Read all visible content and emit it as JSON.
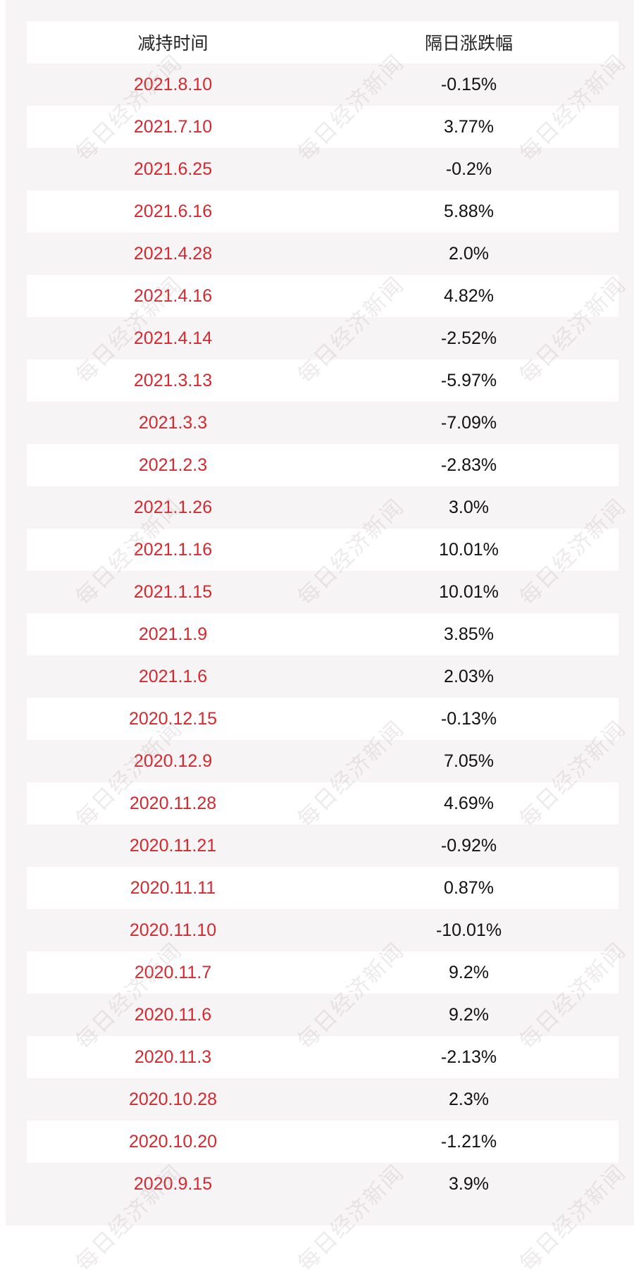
{
  "table": {
    "headers": {
      "date": "减持时间",
      "change": "隔日涨跌幅"
    },
    "rows": [
      {
        "date": "2021.8.10",
        "change": "-0.15%"
      },
      {
        "date": "2021.7.10",
        "change": "3.77%"
      },
      {
        "date": "2021.6.25",
        "change": "-0.2%"
      },
      {
        "date": "2021.6.16",
        "change": "5.88%"
      },
      {
        "date": "2021.4.28",
        "change": "2.0%"
      },
      {
        "date": "2021.4.16",
        "change": "4.82%"
      },
      {
        "date": "2021.4.14",
        "change": "-2.52%"
      },
      {
        "date": "2021.3.13",
        "change": "-5.97%"
      },
      {
        "date": "2021.3.3",
        "change": "-7.09%"
      },
      {
        "date": "2021.2.3",
        "change": "-2.83%"
      },
      {
        "date": "2021.1.26",
        "change": "3.0%"
      },
      {
        "date": "2021.1.16",
        "change": "10.01%"
      },
      {
        "date": "2021.1.15",
        "change": "10.01%"
      },
      {
        "date": "2021.1.9",
        "change": "3.85%"
      },
      {
        "date": "2021.1.6",
        "change": "2.03%"
      },
      {
        "date": "2020.12.15",
        "change": "-0.13%"
      },
      {
        "date": "2020.12.9",
        "change": "7.05%"
      },
      {
        "date": "2020.11.28",
        "change": "4.69%"
      },
      {
        "date": "2020.11.21",
        "change": "-0.92%"
      },
      {
        "date": "2020.11.11",
        "change": "0.87%"
      },
      {
        "date": "2020.11.10",
        "change": "-10.01%"
      },
      {
        "date": "2020.11.7",
        "change": "9.2%"
      },
      {
        "date": "2020.11.6",
        "change": "9.2%"
      },
      {
        "date": "2020.11.3",
        "change": "-2.13%"
      },
      {
        "date": "2020.10.28",
        "change": "2.3%"
      },
      {
        "date": "2020.10.20",
        "change": "-1.21%"
      },
      {
        "date": "2020.9.15",
        "change": "3.9%"
      }
    ]
  },
  "watermark": {
    "text": "每日经济新闻"
  },
  "colors": {
    "date_text": "#d7282f",
    "value_text": "#111111",
    "row_alt": "#f7f4f5",
    "row_white": "#ffffff"
  }
}
